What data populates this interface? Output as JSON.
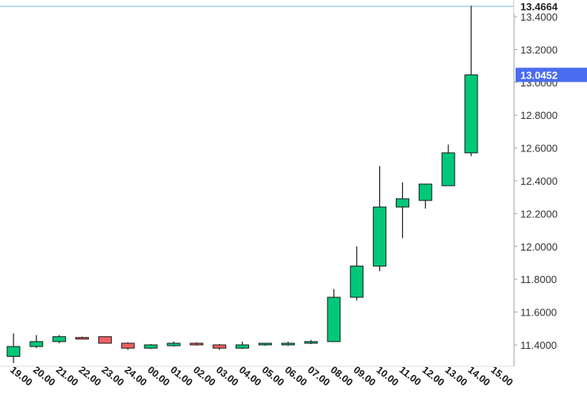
{
  "chart_data": {
    "type": "candlestick",
    "x_labels": [
      "19.00",
      "20.00",
      "21.00",
      "22.00",
      "23.00",
      "24.00",
      "00.00",
      "01.00",
      "02.00",
      "03.00",
      "04.00",
      "05.00",
      "06.00",
      "07.00",
      "08.00",
      "09.00",
      "10.00",
      "11.00",
      "12.00",
      "13.00",
      "14.00",
      "15.00"
    ],
    "candles": [
      {
        "open": 11.33,
        "high": 11.47,
        "low": 11.29,
        "close": 11.39
      },
      {
        "open": 11.39,
        "high": 11.46,
        "low": 11.38,
        "close": 11.42
      },
      {
        "open": 11.42,
        "high": 11.46,
        "low": 11.41,
        "close": 11.45
      },
      {
        "open": 11.445,
        "high": 11.45,
        "low": 11.435,
        "close": 11.44
      },
      {
        "open": 11.45,
        "high": 11.45,
        "low": 11.41,
        "close": 11.41
      },
      {
        "open": 11.41,
        "high": 11.415,
        "low": 11.37,
        "close": 11.38
      },
      {
        "open": 11.38,
        "high": 11.405,
        "low": 11.375,
        "close": 11.4
      },
      {
        "open": 11.395,
        "high": 11.42,
        "low": 11.39,
        "close": 11.41
      },
      {
        "open": 11.41,
        "high": 11.415,
        "low": 11.395,
        "close": 11.4
      },
      {
        "open": 11.4,
        "high": 11.405,
        "low": 11.37,
        "close": 11.38
      },
      {
        "open": 11.38,
        "high": 11.42,
        "low": 11.375,
        "close": 11.4
      },
      {
        "open": 11.4,
        "high": 11.41,
        "low": 11.395,
        "close": 11.41
      },
      {
        "open": 11.4,
        "high": 11.42,
        "low": 11.395,
        "close": 11.41
      },
      {
        "open": 11.41,
        "high": 11.43,
        "low": 11.405,
        "close": 11.42
      },
      {
        "open": 11.42,
        "high": 11.74,
        "low": 11.42,
        "close": 11.69
      },
      {
        "open": 11.69,
        "high": 12.0,
        "low": 11.67,
        "close": 11.88
      },
      {
        "open": 11.88,
        "high": 12.49,
        "low": 11.85,
        "close": 12.24
      },
      {
        "open": 12.24,
        "high": 12.39,
        "low": 12.05,
        "close": 12.29
      },
      {
        "open": 12.28,
        "high": 12.38,
        "low": 12.23,
        "close": 12.38
      },
      {
        "open": 12.37,
        "high": 12.62,
        "low": 12.37,
        "close": 12.57
      },
      {
        "open": 12.57,
        "high": 13.4664,
        "low": 12.55,
        "close": 13.0452
      }
    ],
    "y_ticks": [
      "13.4000",
      "13.2000",
      "13.0000",
      "12.8000",
      "12.6000",
      "12.4000",
      "12.2000",
      "12.0000",
      "11.8000",
      "11.6000",
      "11.4000"
    ],
    "ylim": [
      11.28,
      13.49
    ],
    "high_marker": {
      "label": "13.4664",
      "value": 13.4664
    },
    "last_price": {
      "label": "13.0452",
      "value": 13.0452
    },
    "colors": {
      "up": "#00c878",
      "down": "#f06060",
      "outline": "#1a1a1a",
      "last_price_bg": "#4a6cf0",
      "high_line": "#8ecae6",
      "axis": "#9aa0a6"
    },
    "grid": false
  }
}
